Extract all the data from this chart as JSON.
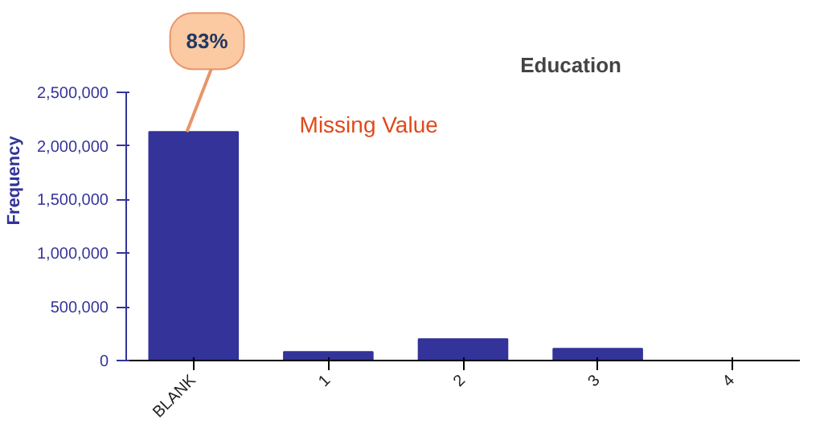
{
  "chart_data": {
    "type": "bar",
    "title": "Education",
    "ylabel": "Frequency",
    "categories": [
      "BLANK",
      "1",
      "2",
      "3",
      "4"
    ],
    "values": [
      2130000,
      80000,
      200000,
      110000,
      0
    ],
    "color": "#333399",
    "ylim": [
      0,
      2500000
    ],
    "yticks": [
      {
        "value": 0,
        "label": "0"
      },
      {
        "value": 500000,
        "label": "500,000"
      },
      {
        "value": 1000000,
        "label": "1,000,000"
      },
      {
        "value": 1500000,
        "label": "1,500,000"
      },
      {
        "value": 2000000,
        "label": "2,000,000"
      },
      {
        "value": 2500000,
        "label": "2,500,000"
      }
    ],
    "annotations": [
      {
        "text": "83%",
        "x": "BLANK",
        "y": 2130000
      },
      "Missing Value"
    ],
    "grid": false
  }
}
